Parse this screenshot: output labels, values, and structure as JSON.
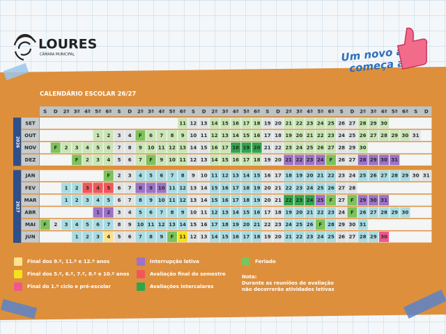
{
  "logo": {
    "name": "LOURES",
    "subtitle": "CÂMARA MUNICIPAL"
  },
  "slogan": [
    "Um novo ano",
    "começa aqui"
  ],
  "calendar": {
    "title": "CALENDÁRIO ESCOLAR 26/27",
    "weekdays": [
      "S",
      "D",
      "2ª",
      "3ª",
      "4ª",
      "5ª",
      "6ª",
      "S",
      "D",
      "2ª",
      "3ª",
      "4ª",
      "5ª",
      "6ª",
      "S",
      "D",
      "2ª",
      "3ª",
      "4ª",
      "5ª",
      "6ª",
      "S",
      "D",
      "2ª",
      "3ª",
      "4ª",
      "5ª",
      "6ª",
      "S",
      "D",
      "2ª",
      "3ª",
      "4ª",
      "5ª",
      "6ª",
      "S",
      "D"
    ],
    "colors": {
      "g": "#c9e6b4",
      "b": "#a9dce3",
      "w": "#dfe3e4",
      "F": "#7cc35a",
      "p": "#9c73c7",
      "r": "#f0575c",
      "k": "#2fa54c",
      "y": "#fbe38e",
      "Y": "#f6e11e",
      "m": "#f2568e"
    },
    "years": [
      {
        "label": "2026",
        "months": [
          {
            "name": "SET",
            "days": [
              null,
              null,
              null,
              null,
              null,
              null,
              null,
              null,
              null,
              null,
              null,
              null,
              null,
              11,
              12,
              13,
              14,
              15,
              16,
              17,
              18,
              19,
              20,
              21,
              22,
              23,
              24,
              25,
              26,
              27,
              28,
              29,
              30,
              null,
              null,
              null,
              null
            ],
            "kinds": ".............gwwgggggwwgggggwwggg...."
          },
          {
            "name": "OUT",
            "days": [
              null,
              null,
              null,
              null,
              null,
              1,
              2,
              3,
              4,
              "F",
              6,
              7,
              8,
              9,
              10,
              11,
              12,
              13,
              14,
              15,
              16,
              17,
              18,
              19,
              20,
              21,
              22,
              23,
              24,
              25,
              26,
              27,
              28,
              29,
              30,
              31,
              null
            ],
            "kinds": ".....ggwwFggggwwgggggwwgggggwwgggggw."
          },
          {
            "name": "NOV",
            "days": [
              null,
              "F",
              2,
              3,
              4,
              5,
              6,
              7,
              8,
              9,
              10,
              11,
              12,
              13,
              14,
              15,
              16,
              17,
              18,
              19,
              20,
              21,
              22,
              23,
              24,
              25,
              26,
              27,
              28,
              29,
              30,
              null,
              null,
              null,
              null,
              null,
              null
            ],
            "kinds": ".Fgggggwwgggggwwggkkkwwgggggwwg......"
          },
          {
            "name": "DEZ",
            "days": [
              null,
              null,
              null,
              "F",
              2,
              3,
              4,
              5,
              6,
              7,
              "F",
              9,
              10,
              11,
              12,
              13,
              14,
              15,
              16,
              17,
              18,
              19,
              20,
              21,
              22,
              23,
              24,
              "F",
              26,
              27,
              28,
              29,
              30,
              31,
              null,
              null,
              null
            ],
            "kinds": "...FgggwwgFgggwwgggggwwppppFwwpppp..."
          }
        ]
      },
      {
        "label": "2027",
        "months": [
          {
            "name": "JAN",
            "days": [
              null,
              null,
              null,
              null,
              null,
              null,
              "F",
              2,
              3,
              4,
              5,
              6,
              7,
              8,
              9,
              10,
              11,
              12,
              13,
              14,
              15,
              16,
              17,
              18,
              19,
              20,
              21,
              22,
              23,
              24,
              25,
              26,
              27,
              28,
              29,
              30,
              31
            ],
            "kinds": "......Fwwbbbbbwwbbbbbwwbbbbbwwbbbbbww"
          },
          {
            "name": "FEV",
            "days": [
              null,
              null,
              1,
              2,
              3,
              4,
              5,
              6,
              7,
              8,
              9,
              10,
              11,
              12,
              13,
              14,
              15,
              16,
              17,
              18,
              19,
              20,
              21,
              22,
              23,
              24,
              25,
              26,
              27,
              28,
              null,
              null,
              null,
              null,
              null,
              null,
              null
            ],
            "kinds": "..bbrrrwwpppbbwwbbbbbwwbbbbbww......."
          },
          {
            "name": "MAR",
            "days": [
              null,
              null,
              1,
              2,
              3,
              4,
              5,
              6,
              7,
              8,
              9,
              10,
              11,
              12,
              13,
              14,
              15,
              16,
              17,
              18,
              19,
              20,
              21,
              22,
              23,
              24,
              25,
              "F",
              27,
              "F",
              29,
              30,
              31,
              null,
              null,
              null,
              null
            ],
            "kinds": "..bbbbbwwbbbbbwwbbbbbwwkkkpFwFppp...."
          },
          {
            "name": "ABR",
            "days": [
              null,
              null,
              null,
              null,
              null,
              1,
              2,
              3,
              4,
              5,
              6,
              7,
              8,
              9,
              10,
              11,
              12,
              13,
              14,
              15,
              16,
              17,
              18,
              19,
              20,
              21,
              22,
              23,
              24,
              "F",
              26,
              27,
              28,
              29,
              30,
              null,
              null
            ],
            "kinds": ".....ppwwbbbbbwwbbbbbwwbbbbbwFbbbbb.."
          },
          {
            "name": "MAI",
            "days": [
              "F",
              2,
              3,
              4,
              5,
              6,
              7,
              8,
              9,
              10,
              11,
              12,
              13,
              14,
              15,
              16,
              17,
              18,
              19,
              20,
              21,
              22,
              23,
              24,
              25,
              26,
              "F",
              28,
              29,
              30,
              31,
              null,
              null,
              null,
              null,
              null,
              null
            ],
            "kinds": "FwbbbbbwwbbbbbwwbbbbbwwbbbFbwwb......"
          },
          {
            "name": "JUN",
            "days": [
              null,
              null,
              null,
              1,
              2,
              3,
              4,
              5,
              6,
              7,
              8,
              9,
              "F",
              11,
              12,
              13,
              14,
              15,
              16,
              17,
              18,
              19,
              20,
              21,
              22,
              23,
              24,
              25,
              26,
              27,
              28,
              29,
              30,
              null,
              null,
              null,
              null
            ],
            "kinds": "...bbbywwbbbFYwwbbbbbwwbbbbbwwbbm...."
          }
        ]
      }
    ]
  },
  "legend": [
    {
      "label": "Final dos 9.º, 11.º e 12.º anos",
      "color": "#fbe38e"
    },
    {
      "label": "Final dos 5.º, 6.º, 7.º, 8.º e 10.º anos",
      "color": "#f6e11e"
    },
    {
      "label": "Final do 1.º ciclo e pré-escolar",
      "color": "#f2568e"
    },
    {
      "label": "Interrupção letiva",
      "color": "#9c73c7"
    },
    {
      "label": "Avaliação final do semestre",
      "color": "#f0575c"
    },
    {
      "label": "Avaliações intercalares",
      "color": "#2fa54c"
    },
    {
      "label": "Feriado",
      "color": "#7cc35a"
    }
  ],
  "note": {
    "title": "Nota:",
    "lines": [
      "Durante as reuniões de avaliação",
      "não decorrerão atividades letivas"
    ]
  }
}
